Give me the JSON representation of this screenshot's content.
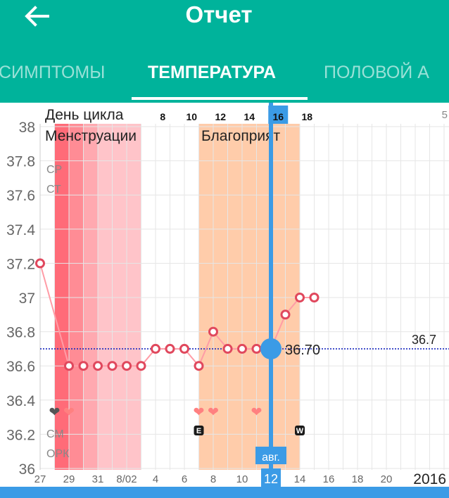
{
  "app_bar": {
    "title": "Отчет",
    "back_icon": "arrow-left-icon",
    "background_color": "#00b39b"
  },
  "tabs": [
    {
      "label": "СИМПТОМЫ",
      "active": false
    },
    {
      "label": "ТЕМПЕРАТУРА",
      "active": true
    },
    {
      "label": "ПОЛОВОЙ А",
      "active": false
    }
  ],
  "chart_data": {
    "type": "line",
    "yticks": [
      "38",
      "37.8",
      "37.6",
      "37.4",
      "37.2",
      "37",
      "36.8",
      "36.6",
      "36.4",
      "36.2",
      "36"
    ],
    "ylim": [
      36,
      38
    ],
    "date_ticks": [
      "27",
      "29",
      "31",
      "8/02",
      "4",
      "6",
      "8",
      "10",
      "12",
      "14",
      "16",
      "18",
      "20"
    ],
    "year_label": "2016",
    "cycle_day_label": "День цикла",
    "cycle_day_ticks": [
      "8",
      "10",
      "12",
      "14",
      "16",
      "18"
    ],
    "cycle_day_right_partial": "5",
    "period_labels": {
      "menstruation": "Менструации",
      "fertile": "Благоприят"
    },
    "row_labels": [
      "СР",
      "СТ",
      "СМ",
      "ОРК"
    ],
    "x": [
      0,
      2,
      3,
      4,
      5,
      6,
      7,
      8,
      9,
      10,
      11,
      12,
      13,
      14,
      15,
      16,
      17,
      18,
      19
    ],
    "series": [
      {
        "values": [
          37.2,
          36.6,
          36.6,
          36.6,
          36.6,
          36.6,
          36.6,
          36.7,
          36.7,
          36.7,
          36.6,
          36.8,
          36.7,
          36.7,
          36.7,
          36.7,
          36.9,
          37.0,
          37.0
        ]
      }
    ],
    "coverline": {
      "value": 36.7,
      "label": "36.7"
    },
    "cursor": {
      "month_label": "авг.",
      "day_label": "12",
      "cycle_day": "16",
      "value_label": "36.70",
      "value": 36.7
    },
    "markers": {
      "hearts": [
        {
          "day": 1,
          "color": "#555555"
        },
        {
          "day": 2,
          "color": "#ff8080"
        },
        {
          "day": 11,
          "color": "#ff8080"
        },
        {
          "day": 12,
          "color": "#ff8080"
        },
        {
          "day": 15,
          "color": "#ff8080"
        }
      ],
      "badges": [
        {
          "day": 11,
          "label": "E"
        },
        {
          "day": 18,
          "label": "W"
        }
      ]
    },
    "colors": {
      "line": "#ff9ca6",
      "point": "#e0485d",
      "coverline": "#1a2abf",
      "cursor": "#3b9be6",
      "menstruation": [
        "#ff6b78",
        "#ff8c95",
        "#ffa9b0",
        "#ffc4c9"
      ],
      "fertile": "#ffccaa"
    },
    "grid": true
  }
}
